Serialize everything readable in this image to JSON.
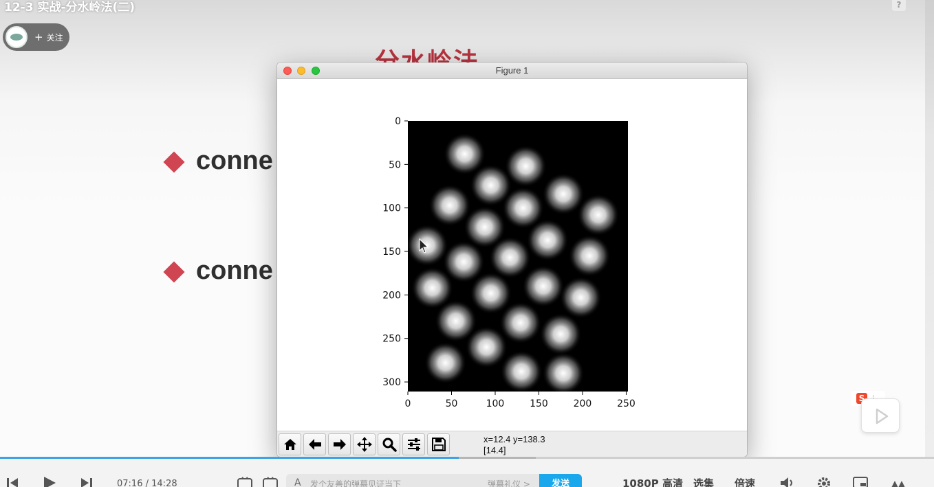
{
  "video": {
    "title": "12-3 实战-分水岭法(二)",
    "follow_plus": "+",
    "follow_label": "关注",
    "help_icon": "question-icon"
  },
  "slide": {
    "heading": "分水岭法",
    "bullets": [
      {
        "text": "conne"
      },
      {
        "text": "conne"
      }
    ]
  },
  "figure": {
    "title": "Figure 1",
    "coord_line1": "x=12.4 y=138.3",
    "coord_line2": "[14.4]",
    "toolbar_icons": [
      "home-icon",
      "back-arrow-icon",
      "forward-arrow-icon",
      "pan-move-icon",
      "zoom-magnifier-icon",
      "configure-subplots-icon",
      "save-floppy-icon"
    ]
  },
  "chart_data": {
    "type": "heatmap",
    "title": "",
    "xlabel": "",
    "ylabel": "",
    "xlim": [
      0,
      252
    ],
    "ylim": [
      311,
      0
    ],
    "xticks": [
      "0",
      "50",
      "100",
      "150",
      "200",
      "250"
    ],
    "yticks": [
      "0",
      "50",
      "100",
      "150",
      "200",
      "250",
      "300"
    ],
    "colormap": "gray",
    "background": "#000000",
    "blob_radius": 24,
    "blobs": [
      {
        "x": 65,
        "y": 38
      },
      {
        "x": 135,
        "y": 52
      },
      {
        "x": 95,
        "y": 74
      },
      {
        "x": 178,
        "y": 84
      },
      {
        "x": 48,
        "y": 97
      },
      {
        "x": 132,
        "y": 100
      },
      {
        "x": 218,
        "y": 108
      },
      {
        "x": 88,
        "y": 122
      },
      {
        "x": 22,
        "y": 143
      },
      {
        "x": 160,
        "y": 137
      },
      {
        "x": 208,
        "y": 155
      },
      {
        "x": 117,
        "y": 157
      },
      {
        "x": 64,
        "y": 162
      },
      {
        "x": 155,
        "y": 190
      },
      {
        "x": 28,
        "y": 192
      },
      {
        "x": 95,
        "y": 198
      },
      {
        "x": 198,
        "y": 203
      },
      {
        "x": 55,
        "y": 230
      },
      {
        "x": 129,
        "y": 232
      },
      {
        "x": 175,
        "y": 245
      },
      {
        "x": 90,
        "y": 260
      },
      {
        "x": 43,
        "y": 278
      },
      {
        "x": 130,
        "y": 288
      },
      {
        "x": 178,
        "y": 290
      }
    ]
  },
  "player": {
    "time_current": "07:16",
    "time_separator": "/",
    "time_total": "14:28",
    "progress_fraction": 0.491,
    "buffer_fraction": 0.574,
    "danmaku_placeholder": "发个友善的弹幕见证当下",
    "danmaku_etiquette": "弹幕礼仪 >",
    "send_label": "发送",
    "quality_label": "1080P 高清",
    "episodes_label": "选集",
    "speed_label": "倍速",
    "icons": [
      "prev-icon",
      "play-icon",
      "next-icon",
      "danmaku-toggle-icon",
      "danmaku-settings-icon",
      "volume-icon",
      "settings-gear-icon",
      "pip-icon",
      "fullscreen-icon"
    ]
  },
  "side": {
    "sogou_badge": "S",
    "sogou_dots": "⋮",
    "float_play_icon": "play-triangle-icon"
  }
}
